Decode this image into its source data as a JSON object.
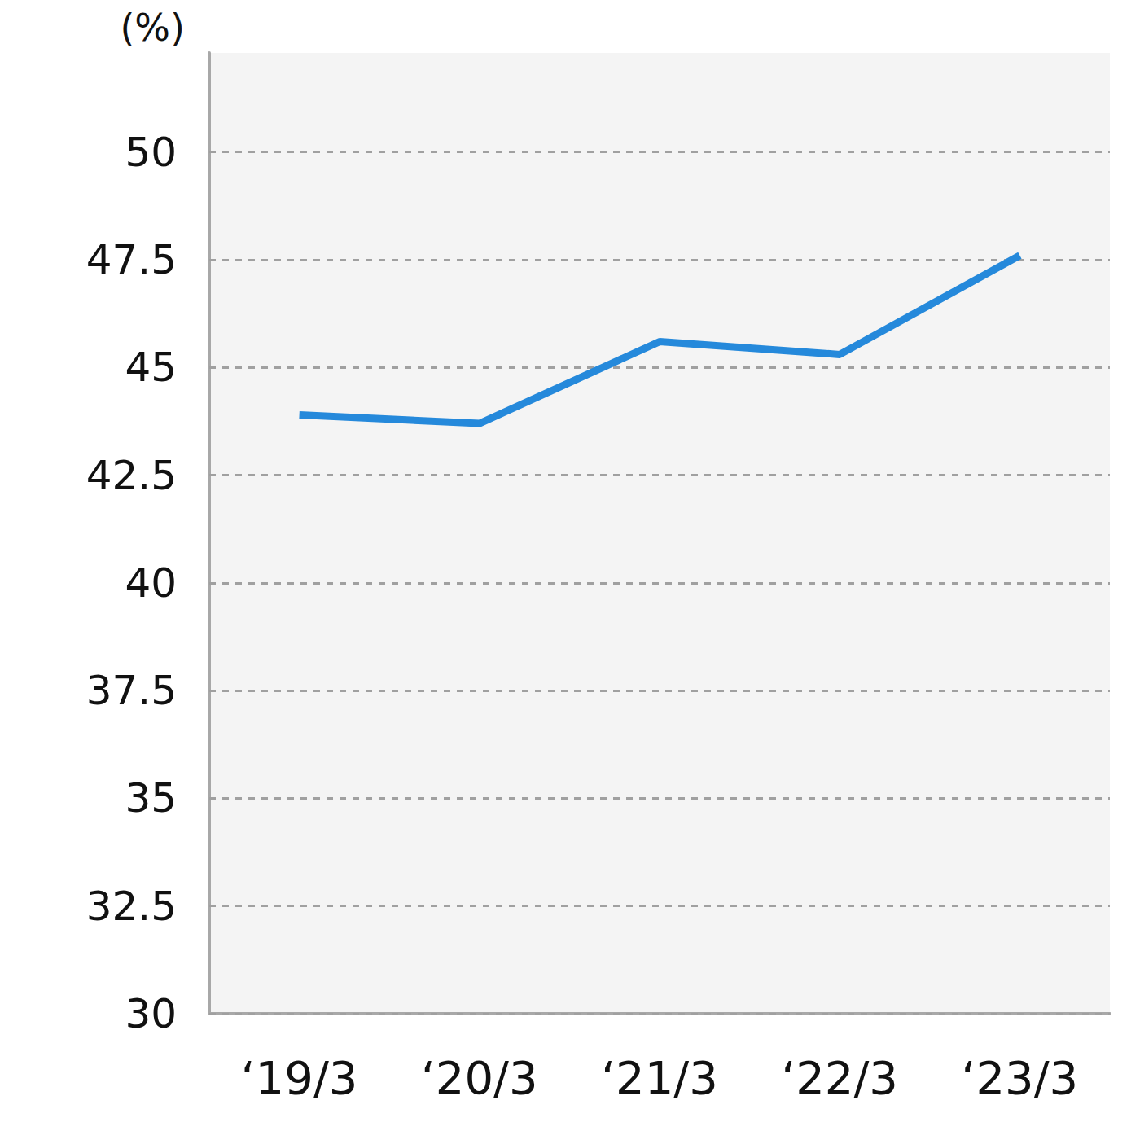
{
  "chart_data": {
    "type": "line",
    "y_label": "(%)",
    "categories": [
      "‘19/3",
      "‘20/3",
      "‘21/3",
      "‘22/3",
      "‘23/3"
    ],
    "values": [
      43.9,
      43.7,
      45.6,
      45.3,
      47.6
    ],
    "color": "#2589db",
    "ylim": [
      30,
      52.3
    ],
    "yticks": [
      30,
      32.5,
      35,
      37.5,
      40,
      42.5,
      45,
      47.5,
      50
    ],
    "grid": true
  }
}
